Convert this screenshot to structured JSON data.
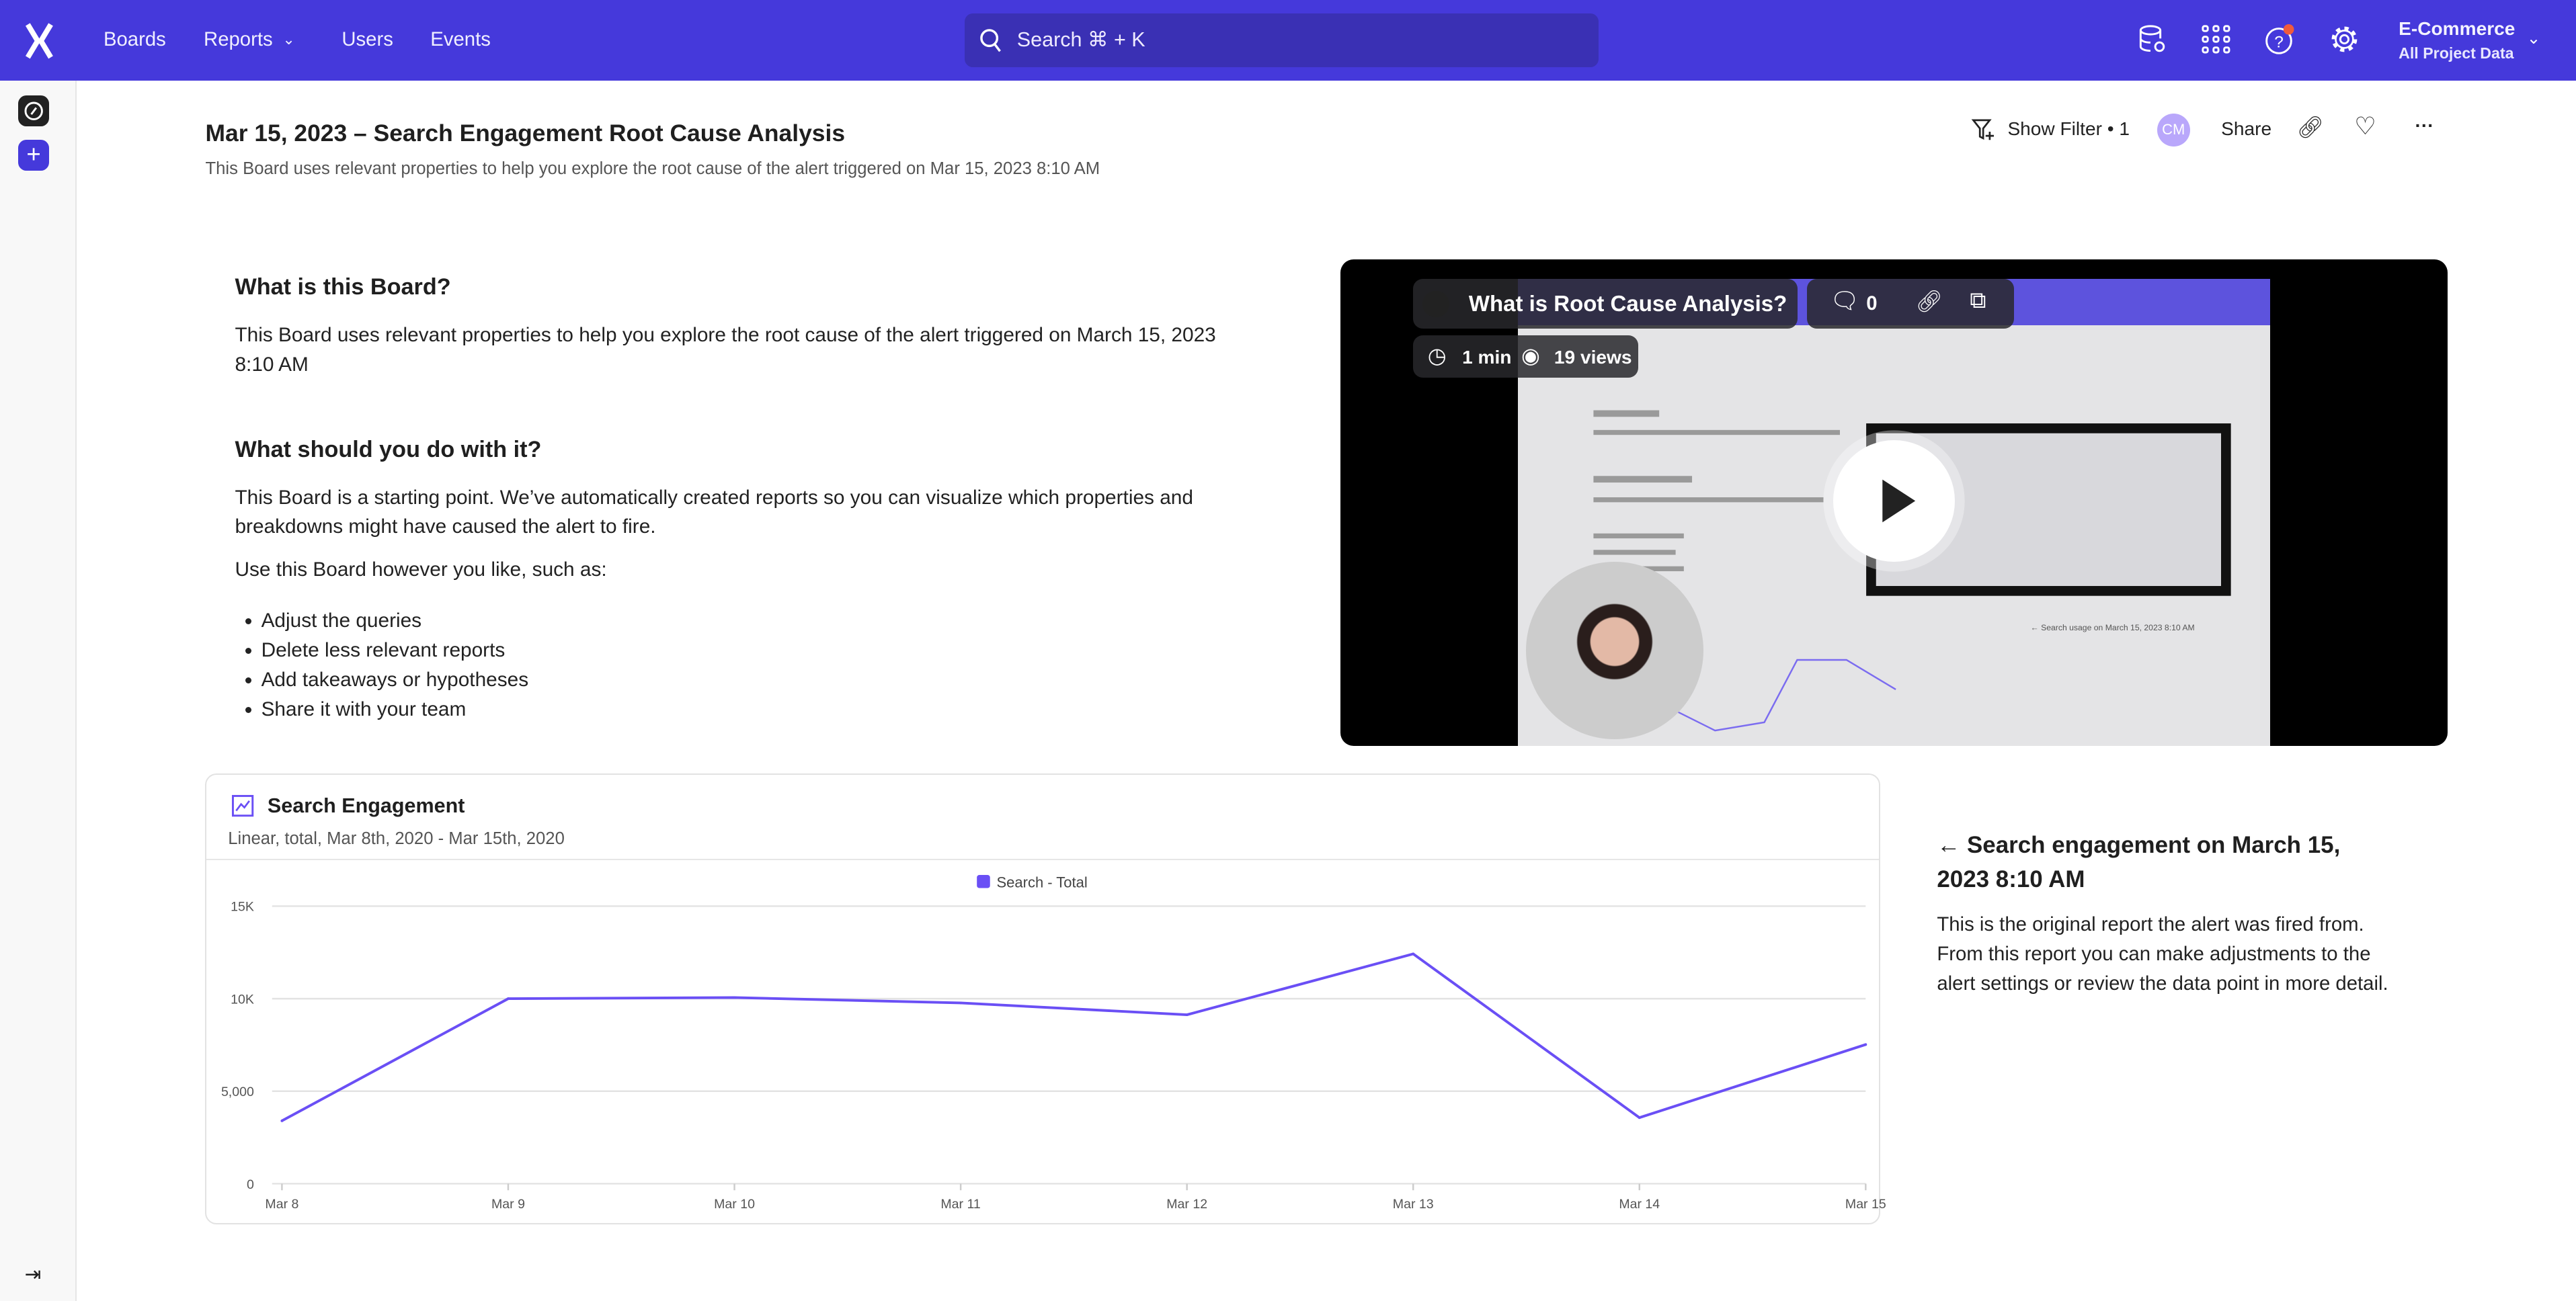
{
  "nav": {
    "items": [
      "Boards",
      "Reports",
      "Users",
      "Events"
    ],
    "search_placeholder": "Search  ⌘ + K",
    "project": "E-Commerce",
    "project_sub": "All Project Data",
    "icons": [
      "data-settings-icon",
      "apps-grid-icon",
      "help-icon",
      "gear-icon"
    ]
  },
  "board": {
    "title": "Mar 15, 2023 – Search Engagement Root Cause Analysis",
    "subtitle": "This Board uses relevant properties to help you explore the root cause of the alert triggered on Mar 15, 2023 8:10 AM"
  },
  "toolbar": {
    "filter": "Show Filter • 1",
    "avatar": "CM",
    "share": "Share"
  },
  "text_card": {
    "h1": "What is this Board?",
    "p1": "This Board uses relevant properties to help you explore the root cause of the alert triggered on March 15, 2023 8:10 AM",
    "h2": "What should you do with it?",
    "p2": "This Board is a starting point. We’ve automatically created reports so you can visualize which properties and breakdowns might have caused the alert to fire.",
    "p3": "Use this Board however you like, such as:",
    "bullets": [
      "Adjust the queries",
      "Delete less relevant reports",
      "Add takeaways or hypotheses",
      "Share it with your team"
    ]
  },
  "video": {
    "title": "What is Root Cause Analysis?",
    "comments": "0",
    "duration": "1 min",
    "views": "19 views"
  },
  "report": {
    "title": "Search Engagement",
    "subtitle": "Linear, total, Mar 8th, 2020 - Mar 15th, 2020"
  },
  "side": {
    "heading": "← Search engagement on March 15, 2023 8:10 AM",
    "body": "This is the original report the alert was fired from. From this report you can make adjustments to the alert settings or review the data point in more detail."
  },
  "colors": {
    "brand": "#4539db",
    "series": "#6a4ff5",
    "notification": "#f05a3c"
  },
  "chart_data": {
    "type": "line",
    "categories": [
      "Mar 8",
      "Mar 9",
      "Mar 10",
      "Mar 11",
      "Mar 12",
      "Mar 13",
      "Mar 14",
      "Mar 15"
    ],
    "series": [
      {
        "name": "Search - Total",
        "values": [
          3400,
          10000,
          10060,
          9770,
          9130,
          12420,
          3570,
          7520
        ]
      }
    ],
    "ylim": [
      0,
      15000
    ],
    "yticks": [
      "0",
      "5,000",
      "10K",
      "15K"
    ],
    "ytick_values": [
      0,
      5000,
      10000,
      15000
    ],
    "grid": true,
    "legend": "top-center"
  }
}
